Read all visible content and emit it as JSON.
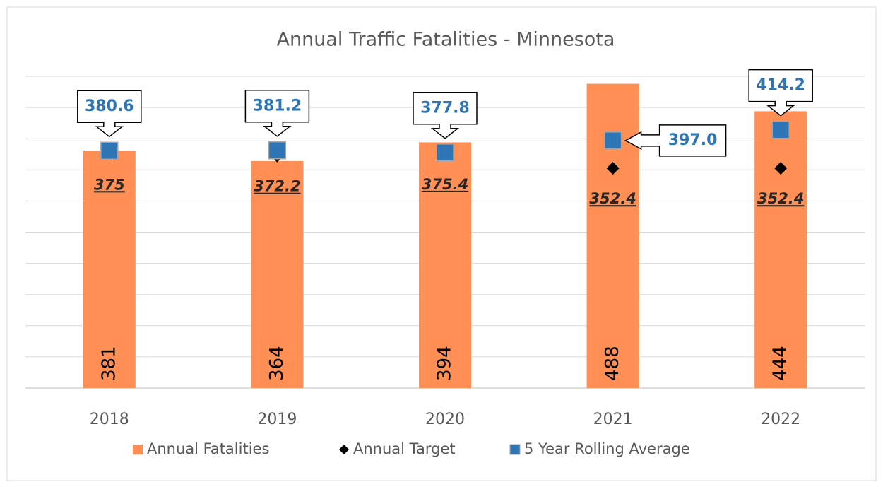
{
  "chart_data": {
    "type": "bar",
    "title": "Annual Traffic Fatalities - Minnesota",
    "categories": [
      "2018",
      "2019",
      "2020",
      "2021",
      "2022"
    ],
    "series": [
      {
        "name": "Annual Fatalities",
        "type": "bar",
        "color": "#FF8F55",
        "values": [
          381,
          364,
          394,
          488,
          444
        ]
      },
      {
        "name": "Annual Target",
        "type": "diamond",
        "color": "#000000",
        "values": [
          375,
          372.2,
          375.4,
          352.4,
          352.4
        ]
      },
      {
        "name": "5 Year Rolling Average",
        "type": "square",
        "color": "#2E75B6",
        "values": [
          380.6,
          381.2,
          377.8,
          397,
          414.2
        ],
        "value_labels": [
          "380.6",
          "381.2",
          "377.8",
          "397.0",
          "414.2"
        ]
      }
    ],
    "ylim": [
      0,
      500
    ],
    "yticks": [
      0,
      50,
      100,
      150,
      200,
      250,
      300,
      350,
      400,
      450,
      500
    ],
    "ytick_labels": false,
    "grid": true,
    "legend": "bottom"
  }
}
